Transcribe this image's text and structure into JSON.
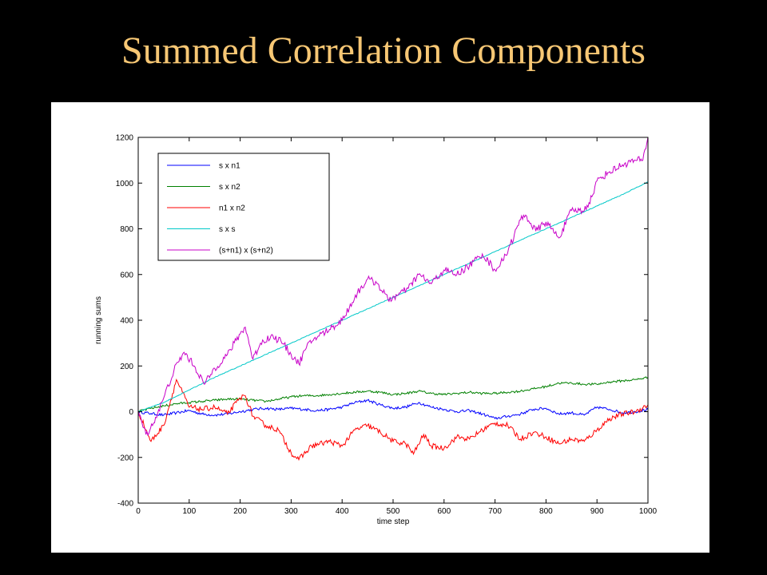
{
  "slide": {
    "title": "Summed Correlation Components"
  },
  "chart_data": {
    "type": "line",
    "xlabel": "time step",
    "ylabel": "running sums",
    "xlim": [
      0,
      1000
    ],
    "ylim": [
      -400,
      1200
    ],
    "xticks": [
      0,
      100,
      200,
      300,
      400,
      500,
      600,
      700,
      800,
      900,
      1000
    ],
    "yticks": [
      -400,
      -200,
      0,
      200,
      400,
      600,
      800,
      1000,
      1200
    ],
    "legend_position": "top-left",
    "grid": false,
    "series": [
      {
        "name": "s x n1",
        "color": "#0000ff",
        "x": [
          0,
          25,
          50,
          75,
          100,
          125,
          150,
          175,
          200,
          225,
          250,
          275,
          300,
          325,
          350,
          375,
          400,
          425,
          450,
          475,
          500,
          525,
          550,
          575,
          600,
          625,
          650,
          675,
          700,
          725,
          750,
          775,
          800,
          825,
          850,
          875,
          900,
          925,
          950,
          975,
          1000
        ],
        "y": [
          0,
          -8,
          -15,
          -5,
          5,
          -10,
          -15,
          -10,
          0,
          10,
          15,
          10,
          15,
          10,
          5,
          10,
          20,
          40,
          50,
          30,
          15,
          20,
          40,
          20,
          10,
          0,
          5,
          -10,
          -30,
          -20,
          -10,
          10,
          15,
          -10,
          -5,
          -15,
          20,
          10,
          -5,
          0,
          10
        ]
      },
      {
        "name": "s x n2",
        "color": "#008000",
        "x": [
          0,
          25,
          50,
          75,
          100,
          125,
          150,
          175,
          200,
          225,
          250,
          275,
          300,
          325,
          350,
          375,
          400,
          425,
          450,
          475,
          500,
          525,
          550,
          575,
          600,
          625,
          650,
          675,
          700,
          725,
          750,
          775,
          800,
          825,
          850,
          875,
          900,
          925,
          950,
          975,
          1000
        ],
        "y": [
          0,
          15,
          25,
          35,
          40,
          45,
          50,
          55,
          55,
          50,
          45,
          55,
          65,
          70,
          70,
          75,
          80,
          85,
          90,
          85,
          75,
          80,
          90,
          80,
          75,
          80,
          85,
          80,
          80,
          85,
          90,
          100,
          110,
          125,
          125,
          120,
          120,
          130,
          135,
          140,
          150
        ]
      },
      {
        "name": "n1 x n2",
        "color": "#ff0000",
        "x": [
          0,
          25,
          50,
          75,
          100,
          125,
          150,
          175,
          200,
          210,
          225,
          250,
          275,
          300,
          315,
          340,
          375,
          400,
          425,
          450,
          475,
          500,
          525,
          540,
          560,
          575,
          600,
          625,
          650,
          675,
          700,
          725,
          750,
          775,
          800,
          825,
          850,
          875,
          900,
          925,
          950,
          975,
          1000
        ],
        "y": [
          0,
          -130,
          -60,
          140,
          20,
          10,
          20,
          -10,
          60,
          70,
          -20,
          -60,
          -80,
          -180,
          -210,
          -150,
          -130,
          -150,
          -80,
          -60,
          -90,
          -130,
          -140,
          -185,
          -100,
          -150,
          -160,
          -110,
          -120,
          -80,
          -50,
          -60,
          -120,
          -90,
          -110,
          -140,
          -120,
          -130,
          -80,
          -30,
          -10,
          0,
          30
        ]
      },
      {
        "name": "s x s",
        "color": "#00c8c8",
        "x": [
          0,
          50,
          100,
          150,
          200,
          250,
          300,
          350,
          400,
          450,
          500,
          550,
          600,
          650,
          700,
          750,
          800,
          850,
          900,
          950,
          1000
        ],
        "y": [
          0,
          40,
          95,
          150,
          200,
          250,
          300,
          350,
          400,
          450,
          500,
          550,
          600,
          650,
          700,
          750,
          800,
          850,
          900,
          950,
          1005
        ]
      },
      {
        "name": "(s+n1) x (s+n2)",
        "color": "#c800c8",
        "x": [
          0,
          15,
          30,
          50,
          70,
          90,
          110,
          130,
          150,
          175,
          200,
          210,
          225,
          240,
          260,
          280,
          300,
          315,
          330,
          345,
          375,
          400,
          430,
          450,
          470,
          490,
          510,
          530,
          550,
          575,
          600,
          625,
          650,
          675,
          700,
          715,
          730,
          750,
          760,
          780,
          800,
          825,
          850,
          875,
          890,
          900,
          925,
          950,
          975,
          990,
          1000
        ],
        "y": [
          0,
          -100,
          -50,
          60,
          180,
          260,
          200,
          120,
          190,
          250,
          340,
          370,
          230,
          300,
          330,
          310,
          250,
          210,
          280,
          320,
          360,
          400,
          520,
          580,
          560,
          490,
          510,
          540,
          600,
          560,
          620,
          600,
          640,
          690,
          620,
          660,
          730,
          840,
          860,
          790,
          830,
          760,
          880,
          880,
          940,
          1010,
          1050,
          1080,
          1100,
          1100,
          1200
        ]
      }
    ]
  }
}
